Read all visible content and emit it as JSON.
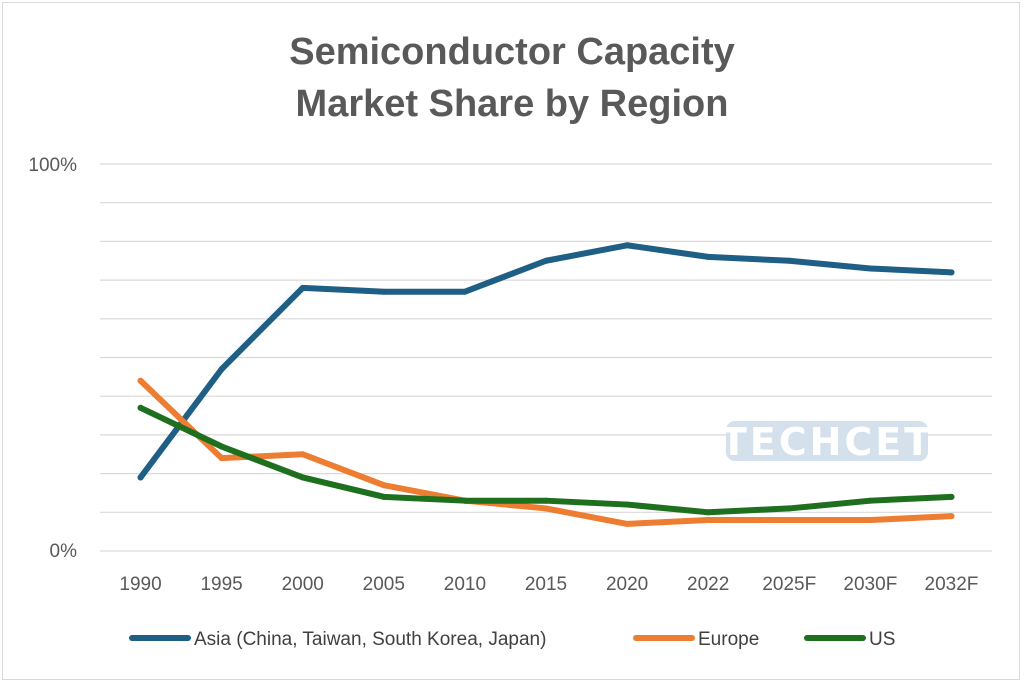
{
  "chart_data": {
    "type": "line",
    "title_lines": [
      "Semiconductor Capacity",
      "Market Share by Region"
    ],
    "categories": [
      "1990",
      "1995",
      "2000",
      "2005",
      "2010",
      "2015",
      "2020",
      "2022",
      "2025F",
      "2030F",
      "2032F"
    ],
    "ylim": [
      0,
      100
    ],
    "y_tick_labels": [
      "100%",
      "0%"
    ],
    "grid": true,
    "legend_position": "bottom",
    "series": [
      {
        "name": "Asia (China, Taiwan, South Korea, Japan)",
        "color": "#1f5f86",
        "values": [
          19,
          47,
          68,
          67,
          67,
          75,
          79,
          76,
          75,
          73,
          72
        ]
      },
      {
        "name": "Europe",
        "color": "#ed7d31",
        "values": [
          44,
          24,
          25,
          17,
          13,
          11,
          7,
          8,
          8,
          8,
          9
        ]
      },
      {
        "name": "US",
        "color": "#1e6f1e",
        "values": [
          37,
          27,
          19,
          14,
          13,
          13,
          12,
          10,
          11,
          13,
          14
        ]
      }
    ],
    "watermark": "TECHCET"
  }
}
